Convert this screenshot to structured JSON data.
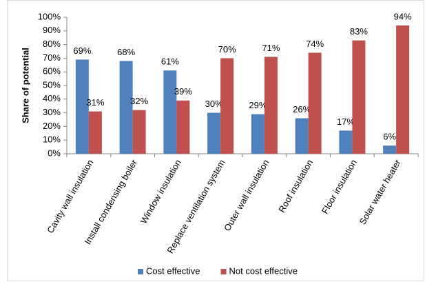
{
  "chart_data": {
    "type": "bar",
    "y_label": "Share of potential",
    "categories": [
      "Cavity wall insulation",
      "Install condensing boiler",
      "Window insulation",
      "Replace ventilation system",
      "Outer wall insulation",
      "Roof insulation",
      "Floor insulation",
      "Solar water heater"
    ],
    "series": [
      {
        "name": "Cost effective",
        "color": "#4f81bd",
        "values": [
          69,
          68,
          61,
          30,
          29,
          26,
          17,
          6
        ],
        "value_labels": [
          "69%",
          "68%",
          "61%",
          "30%",
          "29%",
          "26%",
          "17%",
          "6%"
        ]
      },
      {
        "name": "Not cost effective",
        "color": "#c0504d",
        "values": [
          31,
          32,
          39,
          70,
          71,
          74,
          83,
          94
        ],
        "value_labels": [
          "31%",
          "32%",
          "39%",
          "70%",
          "71%",
          "74%",
          "83%",
          "94%"
        ]
      }
    ],
    "ylim": [
      0,
      100
    ],
    "yticks": [
      {
        "value": 0,
        "label": "0%"
      },
      {
        "value": 10,
        "label": "10%"
      },
      {
        "value": 20,
        "label": "20%"
      },
      {
        "value": 30,
        "label": "30%"
      },
      {
        "value": 40,
        "label": "40%"
      },
      {
        "value": 50,
        "label": "50%"
      },
      {
        "value": 60,
        "label": "60%"
      },
      {
        "value": 70,
        "label": "70%"
      },
      {
        "value": 80,
        "label": "80%"
      },
      {
        "value": 90,
        "label": "90%"
      },
      {
        "value": 100,
        "label": "100%"
      }
    ],
    "legend": "bottom"
  }
}
